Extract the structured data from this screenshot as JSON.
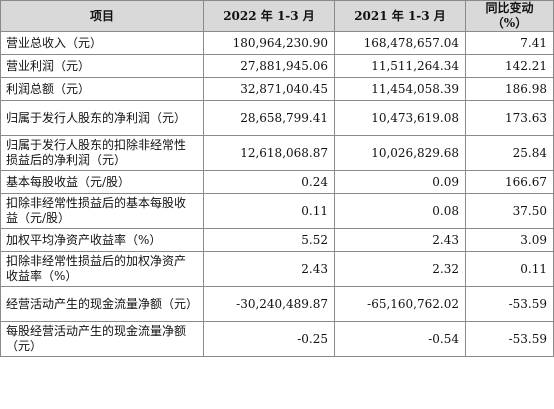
{
  "table": {
    "headers": [
      "项目",
      "2022 年 1-3 月",
      "2021 年 1-3 月",
      "同比变动（%）"
    ],
    "rows": [
      {
        "label": "营业总收入（元）",
        "v2022": "180,964,230.90",
        "v2021": "168,478,657.04",
        "change": "7.41"
      },
      {
        "label": "营业利润（元）",
        "v2022": "27,881,945.06",
        "v2021": "11,511,264.34",
        "change": "142.21"
      },
      {
        "label": "利润总额（元）",
        "v2022": "32,871,040.45",
        "v2021": "11,454,058.39",
        "change": "186.98"
      },
      {
        "label": "归属于发行人股东的净利润（元）",
        "v2022": "28,658,799.41",
        "v2021": "10,473,619.08",
        "change": "173.63"
      },
      {
        "label": "归属于发行人股东的扣除非经常性损益后的净利润（元）",
        "v2022": "12,618,068.87",
        "v2021": "10,026,829.68",
        "change": "25.84"
      },
      {
        "label": "基本每股收益（元/股）",
        "v2022": "0.24",
        "v2021": "0.09",
        "change": "166.67"
      },
      {
        "label": "扣除非经常性损益后的基本每股收益（元/股）",
        "v2022": "0.11",
        "v2021": "0.08",
        "change": "37.50"
      },
      {
        "label": "加权平均净资产收益率（%）",
        "v2022": "5.52",
        "v2021": "2.43",
        "change": "3.09"
      },
      {
        "label": "扣除非经常性损益后的加权净资产收益率（%）",
        "v2022": "2.43",
        "v2021": "2.32",
        "change": "0.11"
      },
      {
        "label": "经营活动产生的现金流量净额（元）",
        "v2022": "-30,240,489.87",
        "v2021": "-65,160,762.02",
        "change": "-53.59"
      },
      {
        "label": "每股经营活动产生的现金流量净额（元）",
        "v2022": "-0.25",
        "v2021": "-0.54",
        "change": "-53.59"
      }
    ]
  }
}
